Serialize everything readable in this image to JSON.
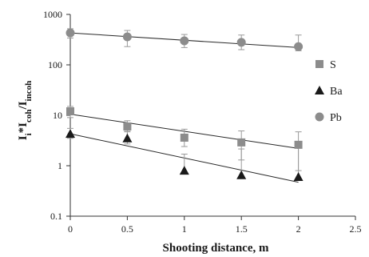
{
  "chart_data": {
    "type": "scatter",
    "xlabel": "Shooting distance, m",
    "ylabel_parts": [
      "I",
      "i",
      "*I",
      "coh",
      "/I",
      "incoh"
    ],
    "xlim": [
      0,
      2.5
    ],
    "ylim": [
      0.1,
      1000
    ],
    "y_scale": "log",
    "grid": false,
    "legend_position": "right",
    "x_ticks": [
      "0",
      "0.5",
      "1",
      "1.5",
      "2",
      "2.5"
    ],
    "y_ticks": [
      "0.1",
      "1",
      "10",
      "100",
      "1000"
    ],
    "x_tick_values": [
      0,
      0.5,
      1,
      1.5,
      2,
      2.5
    ],
    "y_tick_values": [
      0.1,
      1,
      10,
      100,
      1000
    ],
    "series": [
      {
        "name": "S",
        "marker": "square",
        "color": "#8c8c8c",
        "x": [
          0,
          0.5,
          1,
          1.5,
          2
        ],
        "y": [
          12,
          6,
          3.6,
          2.9,
          2.6
        ],
        "error_plus": [
          3,
          1.8,
          1.7,
          2,
          2.1
        ],
        "error_minus": [
          3,
          1.2,
          1.2,
          1.6,
          1.8
        ],
        "trend": {
          "x": [
            0,
            2
          ],
          "y": [
            10.5,
            2.2
          ]
        }
      },
      {
        "name": "Ba",
        "marker": "triangle",
        "color": "#1a1a1a",
        "x": [
          0,
          0.5,
          1,
          1.5,
          2
        ],
        "y": [
          4.3,
          3.5,
          0.8,
          0.65,
          0.6
        ],
        "error_plus": [
          1.2,
          1.2,
          0.9,
          1.5,
          1.9
        ],
        "error_minus": [
          0.8,
          0.8,
          0,
          0,
          0
        ],
        "trend": {
          "x": [
            0,
            2
          ],
          "y": [
            4.3,
            0.47
          ]
        }
      },
      {
        "name": "Pb",
        "marker": "circle",
        "color": "#8c8c8c",
        "x": [
          0,
          0.5,
          1,
          1.5,
          2
        ],
        "y": [
          430,
          360,
          300,
          280,
          230
        ],
        "error_plus": [
          90,
          120,
          100,
          110,
          160
        ],
        "error_minus": [
          90,
          130,
          80,
          80,
          40
        ],
        "trend": {
          "x": [
            0,
            2
          ],
          "y": [
            430,
            220
          ]
        }
      }
    ]
  }
}
